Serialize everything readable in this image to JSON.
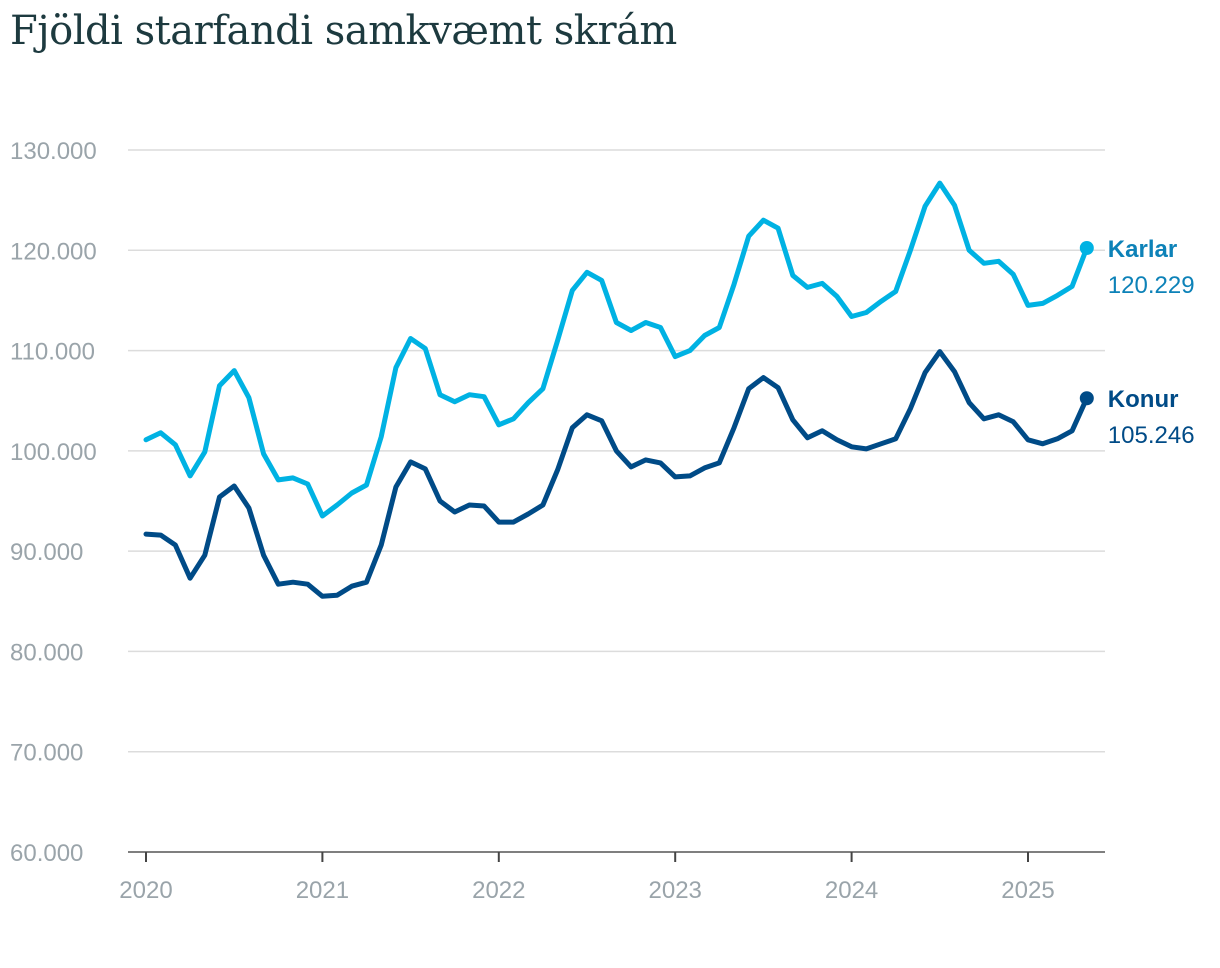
{
  "chart_data": {
    "type": "line",
    "title": "Fjöldi starfandi samkvæmt skrám",
    "ylim": [
      60000,
      130000
    ],
    "yticks": [
      {
        "value": 60000,
        "label": "60.000"
      },
      {
        "value": 70000,
        "label": "70.000"
      },
      {
        "value": 80000,
        "label": "80.000"
      },
      {
        "value": 90000,
        "label": "90.000"
      },
      {
        "value": 100000,
        "label": "100.000"
      },
      {
        "value": 110000,
        "label": "110.000"
      },
      {
        "value": 120000,
        "label": "120.000"
      },
      {
        "value": 130000,
        "label": "130.000"
      }
    ],
    "xticks": [
      "2020",
      "2021",
      "2022",
      "2023",
      "2024",
      "2025"
    ],
    "x_start": "2020-01",
    "x_end": "2025-05",
    "grid": true,
    "series": [
      {
        "name": "Karlar",
        "color": "#00b2e3",
        "label_color": "#0d82b8",
        "end_label": "120.229",
        "values": [
          101100,
          101800,
          100600,
          97500,
          99900,
          106500,
          108000,
          105300,
          99700,
          97100,
          97300,
          96700,
          93500,
          94600,
          95800,
          96600,
          101400,
          108300,
          111200,
          110200,
          105600,
          104900,
          105600,
          105400,
          102600,
          103200,
          104800,
          106200,
          111000,
          116000,
          117800,
          117000,
          112800,
          112000,
          112800,
          112300,
          109400,
          110000,
          111500,
          112300,
          116600,
          121400,
          123000,
          122200,
          117500,
          116300,
          116700,
          115400,
          113400,
          113800,
          114900,
          115900,
          120000,
          124400,
          126700,
          124500,
          120000,
          118700,
          118900,
          117600,
          114500,
          114700,
          115500,
          116400,
          120229
        ]
      },
      {
        "name": "Konur",
        "color": "#004b87",
        "label_color": "#004b87",
        "end_label": "105.246",
        "values": [
          91700,
          91600,
          90600,
          87300,
          89600,
          95400,
          96500,
          94300,
          89600,
          86700,
          86900,
          86700,
          85500,
          85600,
          86500,
          86900,
          90600,
          96400,
          98900,
          98200,
          95000,
          93900,
          94600,
          94500,
          92900,
          92900,
          93700,
          94600,
          98100,
          102300,
          103600,
          103000,
          100000,
          98400,
          99100,
          98800,
          97400,
          97500,
          98300,
          98800,
          102300,
          106200,
          107300,
          106300,
          103100,
          101300,
          102000,
          101100,
          100400,
          100200,
          100700,
          101200,
          104200,
          107800,
          109900,
          107900,
          104800,
          103200,
          103600,
          102900,
          101100,
          100700,
          101200,
          102000,
          105246
        ]
      }
    ]
  }
}
